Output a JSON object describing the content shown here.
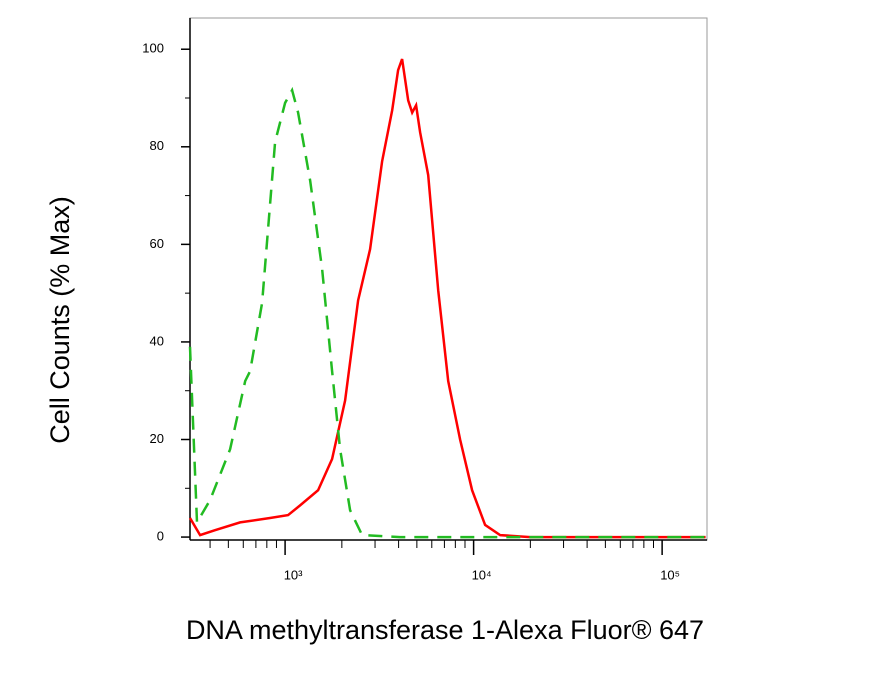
{
  "chart_data": {
    "type": "line",
    "x_label": "DNA methyltransferase 1-Alexa Fluor® 647",
    "y_label": "Cell Counts (% Max)",
    "x_log": true,
    "xlim": [
      313,
      173000
    ],
    "ylim": [
      -0.6,
      106.4
    ],
    "xticks": [
      {
        "value": 1000,
        "label": "10³"
      },
      {
        "value": 10000,
        "label": "10⁴"
      },
      {
        "value": 100000,
        "label": "10⁵"
      }
    ],
    "xminor_ticks": [
      400,
      500,
      600,
      700,
      800,
      900,
      2000,
      3000,
      4000,
      5000,
      6000,
      7000,
      8000,
      9000,
      20000,
      30000,
      40000,
      50000,
      60000,
      70000,
      80000,
      90000
    ],
    "yticks": [
      0,
      20,
      40,
      60,
      80,
      100
    ],
    "yminor_ticks": [
      10,
      30,
      50,
      70,
      90
    ],
    "series": [
      {
        "color": "#ff0000",
        "dash": false,
        "x": [
          313,
          354,
          425,
          577,
          832,
          1037,
          1201,
          1496,
          1775,
          2081,
          2440,
          2825,
          3272,
          3698,
          3975,
          4177,
          4497,
          4722,
          4955,
          5200,
          5741,
          6486,
          7328,
          8474,
          9821,
          11510,
          13830,
          19950,
          170000
        ],
        "values": [
          3.9,
          0.4,
          1.4,
          3,
          3.9,
          4.5,
          6.5,
          9.6,
          16,
          28,
          48.5,
          59,
          77,
          87.5,
          95.7,
          98,
          89.5,
          87,
          88.5,
          83,
          74.2,
          50.6,
          32,
          20,
          9.6,
          2.5,
          0.4,
          0,
          0
        ]
      },
      {
        "color": "#22bb22",
        "dash": true,
        "x": [
          313,
          341,
          400,
          511,
          614,
          652,
          755,
          885,
          1000,
          1089,
          1172,
          1358,
          1572,
          1775,
          1958,
          2213,
          2561,
          4074,
          170000
        ],
        "values": [
          39,
          3,
          7.6,
          18,
          32,
          34,
          48,
          81,
          89,
          91.6,
          87,
          73,
          55,
          34,
          18,
          5.5,
          0.4,
          0,
          0
        ]
      }
    ]
  }
}
